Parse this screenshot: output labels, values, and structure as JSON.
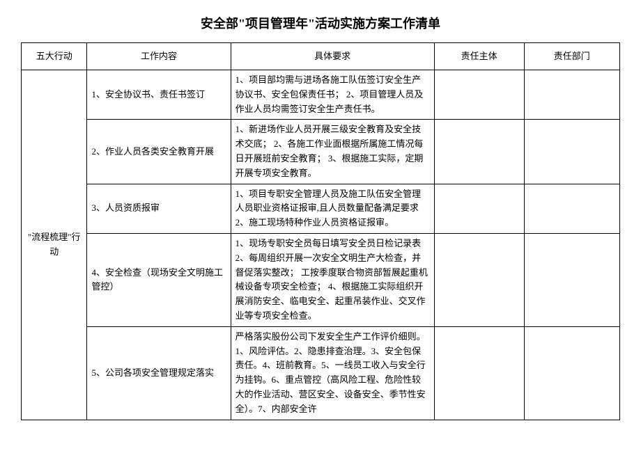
{
  "title": "安全部\"项目管理年\"活动实施方案工作清单",
  "headers": {
    "action": "五大行动",
    "content": "工作内容",
    "detail": "具体要求",
    "resp1": "责任主体",
    "resp2": "责任部门"
  },
  "action_label": "\"流程梳理\"行动",
  "rows": [
    {
      "content": "1、安全协议书、责任书签订",
      "detail": "1、项目部均需与进场各施工队伍签订安全生产协议书、安全包保责任书；\n2、项目管理人员及作业人员均需签订安全生产责任书。",
      "resp1": "",
      "resp2": ""
    },
    {
      "content": "2、作业人员各类安全教育开展",
      "detail": "1、新进场作业人员开展三级安全教育及安全技术交底；\n2、各施工作业面根据所属施工情况每日开展班前安全教育；\n3、根据施工实际，定期开展专项安全教育。",
      "resp1": "",
      "resp2": ""
    },
    {
      "content": "3、人员资质报审",
      "detail": "1、项目专职安全管理人员及施工队伍安全管理人员职业资格证报审,且人员数量配备满足要求\n2、施工现场特种作业人员资格证报审。",
      "resp1": "",
      "resp2": ""
    },
    {
      "content": "4、安全检查（现场安全文明施工管控）",
      "detail": "1、现场专职安全员每日填写安全员日检记录表\n2、每周组织开展一次安全文明生产大检查，并督促落实整改；\n工按季度联合物资部暂展起重机械设备专项安全检查；\n4、根据施工实际组织开展消防安全、临电安全、起重吊装作业、交叉作业等专项安全检查。",
      "resp1": "",
      "resp2": ""
    },
    {
      "content": "5、公司各项安全管理规定落实",
      "detail": "严格落实股份公司下发安全生产工作评价细则。1、风险评估。2、隐患排查治理。3、安全包保责任。4、班前教育。5、一线员工收入与安全行为挂钩。6、重点管控（高风险工程、危险性较大的作业活动、营区安全、设备安全、季节性安全）。7、内部安全许",
      "resp1": "",
      "resp2": ""
    }
  ]
}
